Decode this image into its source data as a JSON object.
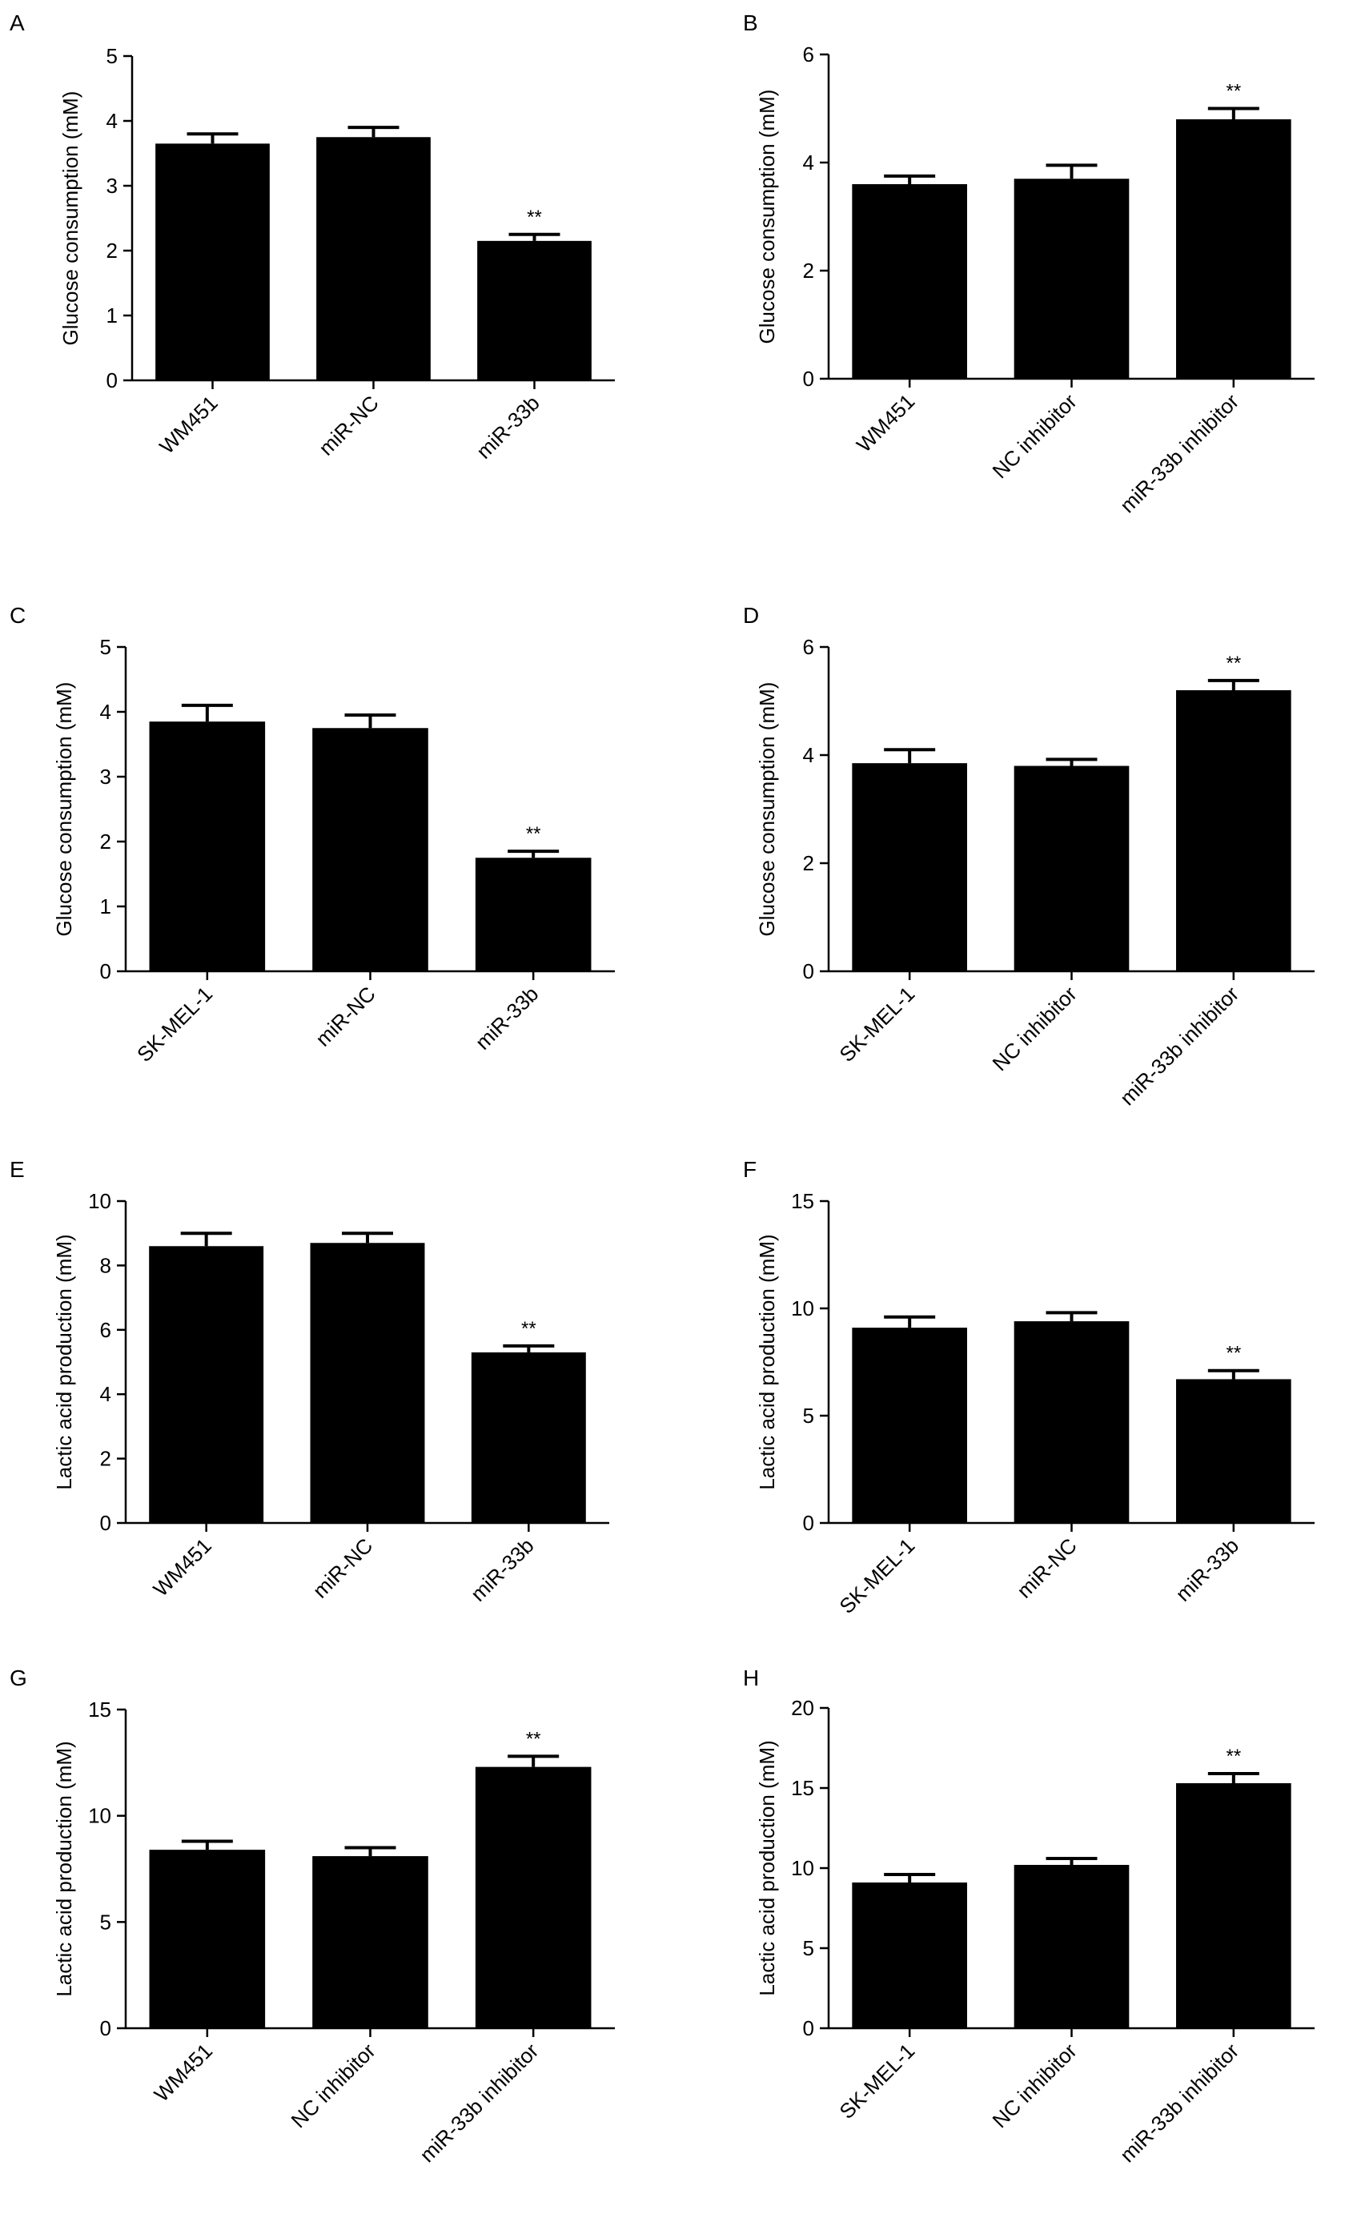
{
  "chart_data": [
    {
      "panel_label": "A",
      "type": "bar",
      "categories": [
        "WM451",
        "miR-NC",
        "miR-33b"
      ],
      "values": [
        3.65,
        3.75,
        2.15
      ],
      "errors": [
        0.15,
        0.15,
        0.1
      ],
      "significance": [
        "",
        "",
        "**"
      ],
      "ylabel": "Glucose consumption (mM)",
      "ylim": [
        0,
        5
      ],
      "yticks": [
        0,
        1,
        2,
        3,
        4,
        5
      ],
      "grid": false
    },
    {
      "panel_label": "B",
      "type": "bar",
      "categories": [
        "WM451",
        "NC inhibitor",
        "miR-33b inhibitor"
      ],
      "values": [
        3.6,
        3.7,
        4.8
      ],
      "errors": [
        0.15,
        0.25,
        0.2
      ],
      "significance": [
        "",
        "",
        "**"
      ],
      "ylabel": "Glucose consumption (mM)",
      "ylim": [
        0,
        6
      ],
      "yticks": [
        0,
        2,
        4,
        6
      ],
      "grid": false
    },
    {
      "panel_label": "C",
      "type": "bar",
      "categories": [
        "SK-MEL-1",
        "miR-NC",
        "miR-33b"
      ],
      "values": [
        3.85,
        3.75,
        1.75
      ],
      "errors": [
        0.25,
        0.2,
        0.1
      ],
      "significance": [
        "",
        "",
        "**"
      ],
      "ylabel": "Glucose consumption (mM)",
      "ylim": [
        0,
        5
      ],
      "yticks": [
        0,
        1,
        2,
        3,
        4,
        5
      ],
      "grid": false
    },
    {
      "panel_label": "D",
      "type": "bar",
      "categories": [
        "SK-MEL-1",
        "NC inhibitor",
        "miR-33b inhibitor"
      ],
      "values": [
        3.85,
        3.8,
        5.2
      ],
      "errors": [
        0.25,
        0.12,
        0.18
      ],
      "significance": [
        "",
        "",
        "**"
      ],
      "ylabel": "Glucose consumption (mM)",
      "ylim": [
        0,
        6
      ],
      "yticks": [
        0,
        2,
        4,
        6
      ],
      "grid": false
    },
    {
      "panel_label": "E",
      "type": "bar",
      "categories": [
        "WM451",
        "miR-NC",
        "miR-33b"
      ],
      "values": [
        8.6,
        8.7,
        5.3
      ],
      "errors": [
        0.4,
        0.3,
        0.2
      ],
      "significance": [
        "",
        "",
        "**"
      ],
      "ylabel": "Lactic acid production (mM)",
      "ylim": [
        0,
        10
      ],
      "yticks": [
        0,
        2,
        4,
        6,
        8,
        10
      ],
      "grid": false
    },
    {
      "panel_label": "F",
      "type": "bar",
      "categories": [
        "SK-MEL-1",
        "miR-NC",
        "miR-33b"
      ],
      "values": [
        9.1,
        9.4,
        6.7
      ],
      "errors": [
        0.5,
        0.4,
        0.4
      ],
      "significance": [
        "",
        "",
        "**"
      ],
      "ylabel": "Lactic acid production (mM)",
      "ylim": [
        0,
        15
      ],
      "yticks": [
        0,
        5,
        10,
        15
      ],
      "grid": false
    },
    {
      "panel_label": "G",
      "type": "bar",
      "categories": [
        "WM451",
        "NC inhibitor",
        "miR-33b inhibitor"
      ],
      "values": [
        8.4,
        8.1,
        12.3
      ],
      "errors": [
        0.4,
        0.4,
        0.5
      ],
      "significance": [
        "",
        "",
        "**"
      ],
      "ylabel": "Lactic acid production (mM)",
      "ylim": [
        0,
        15
      ],
      "yticks": [
        0,
        5,
        10,
        15
      ],
      "grid": false
    },
    {
      "panel_label": "H",
      "type": "bar",
      "categories": [
        "SK-MEL-1",
        "NC inhibitor",
        "miR-33b inhibitor"
      ],
      "values": [
        9.1,
        10.2,
        15.3
      ],
      "errors": [
        0.5,
        0.4,
        0.6
      ],
      "significance": [
        "",
        "",
        "**"
      ],
      "ylabel": "Lactic acid production (mM)",
      "ylim": [
        0,
        20
      ],
      "yticks": [
        0,
        5,
        10,
        15,
        20
      ],
      "grid": false
    }
  ],
  "style": {
    "bar_color": "#000000",
    "axis_color": "#000000",
    "background": "#ffffff"
  }
}
